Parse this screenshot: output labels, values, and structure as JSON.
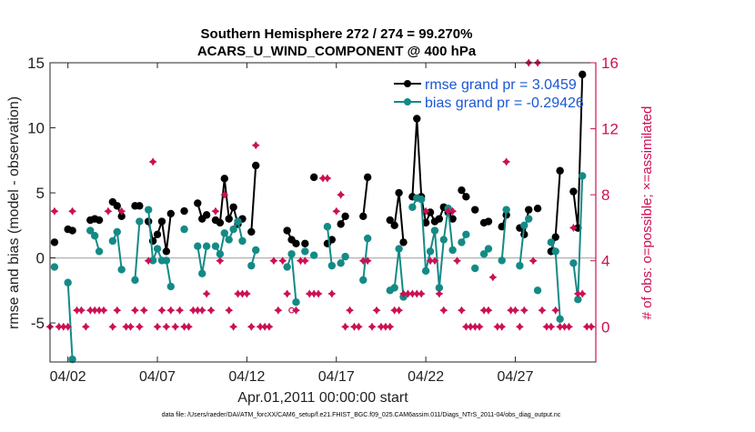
{
  "chart_data": {
    "type": "line",
    "title": "Southern Hemisphere 272 / 274 = 99.270%",
    "subtitle": "ACARS_U_WIND_COMPONENT @ 400 hPa",
    "xlabel": "Apr.01,2011 00:00:00 start",
    "ylabel_left": "rmse and bias (model - observation)",
    "ylabel_right": "# of obs: o=possible; ×=assimilated",
    "footer": "data file: /Users/raeder/DAI/ATM_forcXX/CAM6_setup/f.e21.FHIST_BGC.f09_025.CAM6assim.011/Diags_NTrS_2011-04/obs_diag_output.nc",
    "xlim": [
      1.0,
      31.5
    ],
    "ylim_left": [
      -8,
      15
    ],
    "ylim_right": [
      -2.1333,
      16
    ],
    "x_ticks": [
      {
        "x": 2,
        "label": "04/02"
      },
      {
        "x": 7,
        "label": "04/07"
      },
      {
        "x": 12,
        "label": "04/12"
      },
      {
        "x": 17,
        "label": "04/17"
      },
      {
        "x": 22,
        "label": "04/22"
      },
      {
        "x": 27,
        "label": "04/27"
      }
    ],
    "y_ticks_left": [
      {
        "v": 15,
        "label": "15"
      },
      {
        "v": 10,
        "label": "10"
      },
      {
        "v": 5,
        "label": "5"
      },
      {
        "v": 0,
        "label": "0"
      },
      {
        "v": -5,
        "label": "-5"
      }
    ],
    "y_ticks_right": [
      {
        "v": 16,
        "label": "16"
      },
      {
        "v": 12,
        "label": "12"
      },
      {
        "v": 8,
        "label": "8"
      },
      {
        "v": 4,
        "label": "4"
      },
      {
        "v": 0,
        "label": "0"
      }
    ],
    "series": [
      {
        "name": "rmse grand pr = 3.0459",
        "color": "#000000",
        "x": [
          1.25,
          2.0,
          2.25,
          3.25,
          3.5,
          3.75,
          4.5,
          4.75,
          5.0,
          5.75,
          6.0,
          6.5,
          6.75,
          7.0,
          7.25,
          7.5,
          7.75,
          8.5,
          9.25,
          9.5,
          9.75,
          10.25,
          10.5,
          10.75,
          11.0,
          11.25,
          11.5,
          11.75,
          12.25,
          12.5,
          14.25,
          14.5,
          14.75,
          15.25,
          15.75,
          16.5,
          16.75,
          17.25,
          17.5,
          18.5,
          18.75,
          20.0,
          20.25,
          20.5,
          20.75,
          21.25,
          21.5,
          21.75,
          22.0,
          22.25,
          22.5,
          22.75,
          23.0,
          23.25,
          23.5,
          24.0,
          24.25,
          24.75,
          25.25,
          25.5,
          26.25,
          26.5,
          27.25,
          27.5,
          27.75,
          28.25,
          29.0,
          29.25,
          29.5,
          30.25,
          30.5,
          30.75
        ],
        "y": [
          1.2,
          2.2,
          2.1,
          2.9,
          3.0,
          2.9,
          4.3,
          4.0,
          3.2,
          4.0,
          4.0,
          2.8,
          1.3,
          1.8,
          2.8,
          0.5,
          3.4,
          3.6,
          4.2,
          3.0,
          3.3,
          2.9,
          2.7,
          6.1,
          3.0,
          3.9,
          2.6,
          3.0,
          2.0,
          7.1,
          2.1,
          1.4,
          1.1,
          1.1,
          6.2,
          1.1,
          1.4,
          2.6,
          3.2,
          3.2,
          6.2,
          2.9,
          2.5,
          5.0,
          1.2,
          4.7,
          10.7,
          4.7,
          2.7,
          3.5,
          2.8,
          3.0,
          3.9,
          3.5,
          3.0,
          5.2,
          4.7,
          3.7,
          2.7,
          2.8,
          2.4,
          3.3,
          2.3,
          1.8,
          3.7,
          3.8,
          0.5,
          1.6,
          6.7,
          5.1,
          2.3,
          14.1
        ]
      },
      {
        "name": "bias grand pr = -0.29426",
        "color": "#148a86",
        "x": [
          1.25,
          2.0,
          2.25,
          3.25,
          3.5,
          3.75,
          4.5,
          4.75,
          5.0,
          5.75,
          6.0,
          6.5,
          6.75,
          7.0,
          7.25,
          7.5,
          7.75,
          8.5,
          9.25,
          9.5,
          9.75,
          10.25,
          10.5,
          10.75,
          11.0,
          11.25,
          11.5,
          11.75,
          12.25,
          12.5,
          14.25,
          14.5,
          14.75,
          15.25,
          15.75,
          16.5,
          16.75,
          17.25,
          17.5,
          18.5,
          18.75,
          20.0,
          20.25,
          20.5,
          20.75,
          21.25,
          21.5,
          21.75,
          22.0,
          22.25,
          22.5,
          22.75,
          23.0,
          23.25,
          23.5,
          24.0,
          24.25,
          24.75,
          25.25,
          25.5,
          26.25,
          26.5,
          27.25,
          27.5,
          27.75,
          28.25,
          29.0,
          29.25,
          29.5,
          30.25,
          30.5,
          30.75
        ],
        "y": [
          -0.7,
          -1.9,
          -7.8,
          2.1,
          1.7,
          0.5,
          1.3,
          2.0,
          -0.9,
          -1.7,
          2.8,
          3.7,
          -0.2,
          0.7,
          -0.2,
          -0.2,
          -2.2,
          2.2,
          0.9,
          -1.2,
          0.9,
          0.9,
          0.3,
          1.9,
          1.4,
          2.2,
          2.8,
          1.3,
          -0.6,
          0.6,
          -0.7,
          0.3,
          -3.4,
          0.5,
          0.2,
          2.4,
          -0.6,
          -0.4,
          0.1,
          -1.7,
          1.5,
          -2.5,
          -2.3,
          0.7,
          -3.0,
          3.9,
          4.6,
          4.5,
          -1.0,
          0.5,
          2.1,
          -2.3,
          1.4,
          3.8,
          0.6,
          1.2,
          1.8,
          -0.8,
          0.3,
          0.7,
          -0.2,
          3.7,
          -0.6,
          2.5,
          3.0,
          -2.5,
          1.2,
          0.5,
          -4.7,
          -0.4,
          -3.2,
          6.3
        ]
      }
    ],
    "obs_possible": {
      "color": "#cc1055",
      "x": [
        14.5
      ],
      "y": [
        1
      ]
    },
    "obs_assimilated": {
      "color": "#cc1055",
      "x": [
        1.0,
        1.25,
        1.5,
        1.75,
        2.0,
        2.25,
        2.5,
        2.75,
        3.0,
        3.25,
        3.5,
        3.75,
        4.0,
        4.25,
        4.5,
        4.75,
        5.0,
        5.25,
        5.5,
        5.75,
        6.0,
        6.25,
        6.5,
        6.75,
        7.0,
        7.25,
        7.5,
        7.75,
        8.0,
        8.25,
        8.5,
        8.75,
        9.0,
        9.25,
        9.5,
        9.75,
        10.0,
        10.25,
        10.5,
        10.75,
        11.0,
        11.25,
        11.5,
        11.75,
        12.0,
        12.25,
        12.5,
        12.75,
        13.0,
        13.25,
        13.5,
        13.75,
        14.0,
        14.25,
        14.75,
        15.0,
        15.25,
        15.5,
        15.75,
        16.0,
        16.25,
        16.5,
        16.75,
        17.0,
        17.25,
        17.5,
        17.75,
        18.0,
        18.25,
        18.5,
        18.75,
        19.0,
        19.25,
        19.5,
        19.75,
        20.0,
        20.25,
        20.5,
        20.75,
        21.0,
        21.25,
        21.5,
        21.75,
        22.0,
        22.25,
        22.5,
        22.75,
        23.0,
        23.25,
        23.5,
        23.75,
        24.0,
        24.25,
        24.5,
        24.75,
        25.0,
        25.25,
        25.5,
        25.75,
        26.0,
        26.25,
        26.5,
        26.75,
        27.0,
        27.25,
        27.5,
        27.75,
        28.0,
        28.25,
        28.5,
        28.75,
        29.0,
        29.25,
        29.5,
        29.75,
        30.0,
        30.25,
        30.5,
        30.75,
        31.0,
        31.25
      ],
      "y": [
        0,
        7,
        0,
        0,
        0,
        7,
        1,
        1,
        0,
        1,
        1,
        1,
        1,
        7,
        0,
        1,
        7,
        0,
        0,
        1,
        0,
        1,
        4,
        10,
        0,
        1,
        0,
        1,
        0,
        1,
        0,
        0,
        1,
        1,
        1,
        2,
        1,
        7,
        4,
        8,
        1,
        0,
        2,
        2,
        2,
        0,
        11,
        0,
        0,
        0,
        4,
        1,
        4,
        2,
        1,
        4,
        4,
        2,
        2,
        2,
        9,
        9,
        2,
        7,
        8,
        0,
        1,
        0,
        0,
        4,
        4,
        0,
        1,
        0,
        0,
        0,
        1,
        1,
        2,
        2,
        2,
        2,
        2,
        7,
        4,
        4,
        2,
        1,
        7,
        7,
        4,
        1,
        0,
        0,
        0,
        0,
        1,
        1,
        3,
        0,
        0,
        10,
        1,
        1,
        0,
        1,
        16,
        4,
        16,
        1,
        0,
        0,
        1,
        0,
        0,
        0,
        6,
        2,
        2,
        0,
        0
      ]
    },
    "zero_line": 0
  }
}
